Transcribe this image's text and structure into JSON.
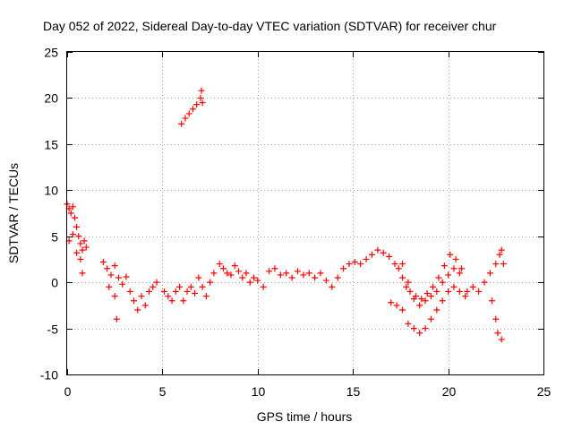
{
  "chart_data": {
    "type": "scatter",
    "title": "Day 052 of 2022, Sidereal Day-to-day VTEC variation (SDTVAR) for receiver chur",
    "xlabel": "GPS time / hours",
    "ylabel": "SDTVAR / TECUs",
    "xlim": [
      0,
      25
    ],
    "ylim": [
      -10,
      25
    ],
    "xticks": [
      0,
      5,
      10,
      15,
      20,
      25
    ],
    "yticks": [
      -10,
      -5,
      0,
      5,
      10,
      15,
      20,
      25
    ],
    "xtick_labels": [
      "0",
      "5",
      "10",
      "15",
      "20",
      "25"
    ],
    "ytick_labels": [
      "-10",
      "-5",
      "0",
      "5",
      "10",
      "15",
      "20",
      "25"
    ],
    "grid": true,
    "marker": "+",
    "series": [
      {
        "name": "sdtvar",
        "color": "#ff0000",
        "points": [
          [
            0.0,
            8.5
          ],
          [
            0.1,
            8.0
          ],
          [
            0.2,
            7.5
          ],
          [
            0.3,
            8.2
          ],
          [
            0.4,
            7.0
          ],
          [
            0.5,
            6.0
          ],
          [
            0.6,
            5.0
          ],
          [
            0.7,
            4.2
          ],
          [
            0.8,
            3.5
          ],
          [
            0.9,
            4.5
          ],
          [
            1.0,
            3.8
          ],
          [
            0.1,
            4.5
          ],
          [
            0.3,
            5.2
          ],
          [
            0.5,
            3.2
          ],
          [
            0.7,
            2.5
          ],
          [
            0.8,
            1.0
          ],
          [
            1.9,
            2.2
          ],
          [
            2.1,
            1.5
          ],
          [
            2.3,
            0.8
          ],
          [
            2.5,
            1.8
          ],
          [
            2.7,
            0.5
          ],
          [
            2.2,
            -0.5
          ],
          [
            2.5,
            -1.5
          ],
          [
            2.6,
            -4.0
          ],
          [
            2.9,
            -0.2
          ],
          [
            3.1,
            0.6
          ],
          [
            3.3,
            -1.0
          ],
          [
            3.5,
            -2.0
          ],
          [
            3.7,
            -3.0
          ],
          [
            3.9,
            -1.5
          ],
          [
            4.1,
            -2.5
          ],
          [
            4.3,
            -1.0
          ],
          [
            4.5,
            -0.5
          ],
          [
            4.7,
            0.0
          ],
          [
            5.1,
            -1.0
          ],
          [
            5.3,
            -1.5
          ],
          [
            5.5,
            -2.0
          ],
          [
            5.7,
            -1.0
          ],
          [
            5.9,
            -0.5
          ],
          [
            6.1,
            -2.0
          ],
          [
            6.3,
            -1.0
          ],
          [
            6.5,
            -0.5
          ],
          [
            6.7,
            -1.2
          ],
          [
            6.9,
            0.5
          ],
          [
            7.1,
            -0.5
          ],
          [
            7.3,
            -1.5
          ],
          [
            7.5,
            0.0
          ],
          [
            7.7,
            1.0
          ],
          [
            6.0,
            17.2
          ],
          [
            6.2,
            17.8
          ],
          [
            6.4,
            18.3
          ],
          [
            6.6,
            18.8
          ],
          [
            6.8,
            19.3
          ],
          [
            7.0,
            20.0
          ],
          [
            7.05,
            20.8
          ],
          [
            7.1,
            19.5
          ],
          [
            8.0,
            2.0
          ],
          [
            8.2,
            1.5
          ],
          [
            8.4,
            1.0
          ],
          [
            8.6,
            0.8
          ],
          [
            8.8,
            1.8
          ],
          [
            9.0,
            1.2
          ],
          [
            9.2,
            0.5
          ],
          [
            9.4,
            1.0
          ],
          [
            9.6,
            0.0
          ],
          [
            9.8,
            0.5
          ],
          [
            10.0,
            0.2
          ],
          [
            10.3,
            -0.5
          ],
          [
            10.6,
            1.2
          ],
          [
            10.9,
            1.5
          ],
          [
            11.2,
            0.8
          ],
          [
            11.5,
            1.0
          ],
          [
            11.8,
            0.5
          ],
          [
            12.1,
            1.2
          ],
          [
            12.4,
            0.8
          ],
          [
            12.7,
            1.0
          ],
          [
            13.0,
            0.5
          ],
          [
            13.3,
            1.0
          ],
          [
            13.6,
            0.2
          ],
          [
            13.9,
            -0.5
          ],
          [
            14.2,
            0.5
          ],
          [
            14.5,
            1.5
          ],
          [
            14.8,
            2.0
          ],
          [
            15.1,
            2.2
          ],
          [
            15.4,
            2.0
          ],
          [
            15.7,
            2.5
          ],
          [
            16.0,
            3.0
          ],
          [
            16.3,
            3.5
          ],
          [
            16.6,
            3.2
          ],
          [
            16.9,
            2.8
          ],
          [
            17.2,
            2.0
          ],
          [
            17.4,
            1.5
          ],
          [
            17.6,
            0.5
          ],
          [
            17.8,
            -0.5
          ],
          [
            18.0,
            -1.0
          ],
          [
            18.3,
            -1.5
          ],
          [
            18.6,
            -1.8
          ],
          [
            18.9,
            -1.2
          ],
          [
            19.2,
            -0.5
          ],
          [
            19.5,
            0.5
          ],
          [
            19.8,
            1.8
          ],
          [
            20.1,
            3.0
          ],
          [
            20.4,
            2.5
          ],
          [
            20.7,
            1.5
          ],
          [
            17.6,
            2.0
          ],
          [
            17.9,
            0.0
          ],
          [
            18.2,
            -1.8
          ],
          [
            18.5,
            -2.5
          ],
          [
            18.8,
            -2.0
          ],
          [
            19.1,
            -1.5
          ],
          [
            19.4,
            -1.0
          ],
          [
            19.7,
            0.0
          ],
          [
            20.0,
            0.8
          ],
          [
            20.3,
            1.5
          ],
          [
            20.6,
            1.0
          ],
          [
            17.0,
            -2.2
          ],
          [
            17.3,
            -2.5
          ],
          [
            17.6,
            -3.0
          ],
          [
            17.9,
            -4.5
          ],
          [
            18.2,
            -5.0
          ],
          [
            18.5,
            -5.5
          ],
          [
            18.8,
            -5.0
          ],
          [
            19.1,
            -4.0
          ],
          [
            19.4,
            -3.0
          ],
          [
            19.7,
            -2.0
          ],
          [
            20.0,
            -1.0
          ],
          [
            20.3,
            -0.5
          ],
          [
            20.6,
            -1.0
          ],
          [
            20.9,
            -1.5
          ],
          [
            21.0,
            -1.0
          ],
          [
            21.3,
            -0.5
          ],
          [
            21.6,
            -1.0
          ],
          [
            21.9,
            0.0
          ],
          [
            22.2,
            1.0
          ],
          [
            22.5,
            2.0
          ],
          [
            22.7,
            3.0
          ],
          [
            22.8,
            3.5
          ],
          [
            22.9,
            2.0
          ],
          [
            22.3,
            -2.0
          ],
          [
            22.5,
            -4.0
          ],
          [
            22.6,
            -5.5
          ],
          [
            22.8,
            -6.2
          ]
        ]
      }
    ]
  }
}
